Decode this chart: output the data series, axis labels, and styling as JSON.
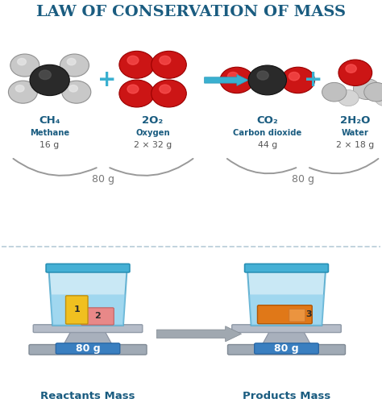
{
  "title": "LAW OF CONSERVATION OF MASS",
  "title_color": "#1a5c80",
  "background_color": "#ffffff",
  "molecules": {
    "ch4_label": "CH₄",
    "ch4_name": "Methane",
    "ch4_mass": "16 g",
    "o2_label": "2O₂",
    "o2_name": "Oxygen",
    "o2_mass": "2 × 32 g",
    "co2_label": "CO₂",
    "co2_name": "Carbon dioxide",
    "co2_mass": "44 g",
    "h2o_label": "2H₂O",
    "h2o_name": "Water",
    "h2o_mass": "2 × 18 g",
    "reactants_total": "80 g",
    "products_total": "80 g"
  },
  "scale_mass": "80 g",
  "reactants_label": "Reactants Mass",
  "products_label": "Products Mass",
  "colors": {
    "dark_gray": "#2a2a2a",
    "mid_gray": "#666666",
    "light_gray": "#b0b0b0",
    "red_atom": "#cc1515",
    "red_sheen": "#ff5555",
    "dark_atom": "#333333",
    "cyan_plus": "#3ab0d0",
    "cyan_arrow": "#3ab0d0",
    "brace_gray": "#999999",
    "scale_platform": "#aab0bc",
    "scale_foot": "#9aa0ac",
    "scale_display_bg": "#3a7fc0",
    "scale_display_text": "#ffffff",
    "beaker_fill": "#b8e0f0",
    "beaker_rim": "#50b0d8",
    "beaker_liquid": "#8dd0e8",
    "beaker_edge": "#50a8cc",
    "yellow_vial": "#f0c020",
    "pink_sub": "#e88888",
    "orange_sub": "#e07818",
    "gray_arrow_fill": "#a8b0b8",
    "label_bold": "#1a5c80",
    "label_name": "#1a5c80",
    "mass_text": "#555555"
  }
}
